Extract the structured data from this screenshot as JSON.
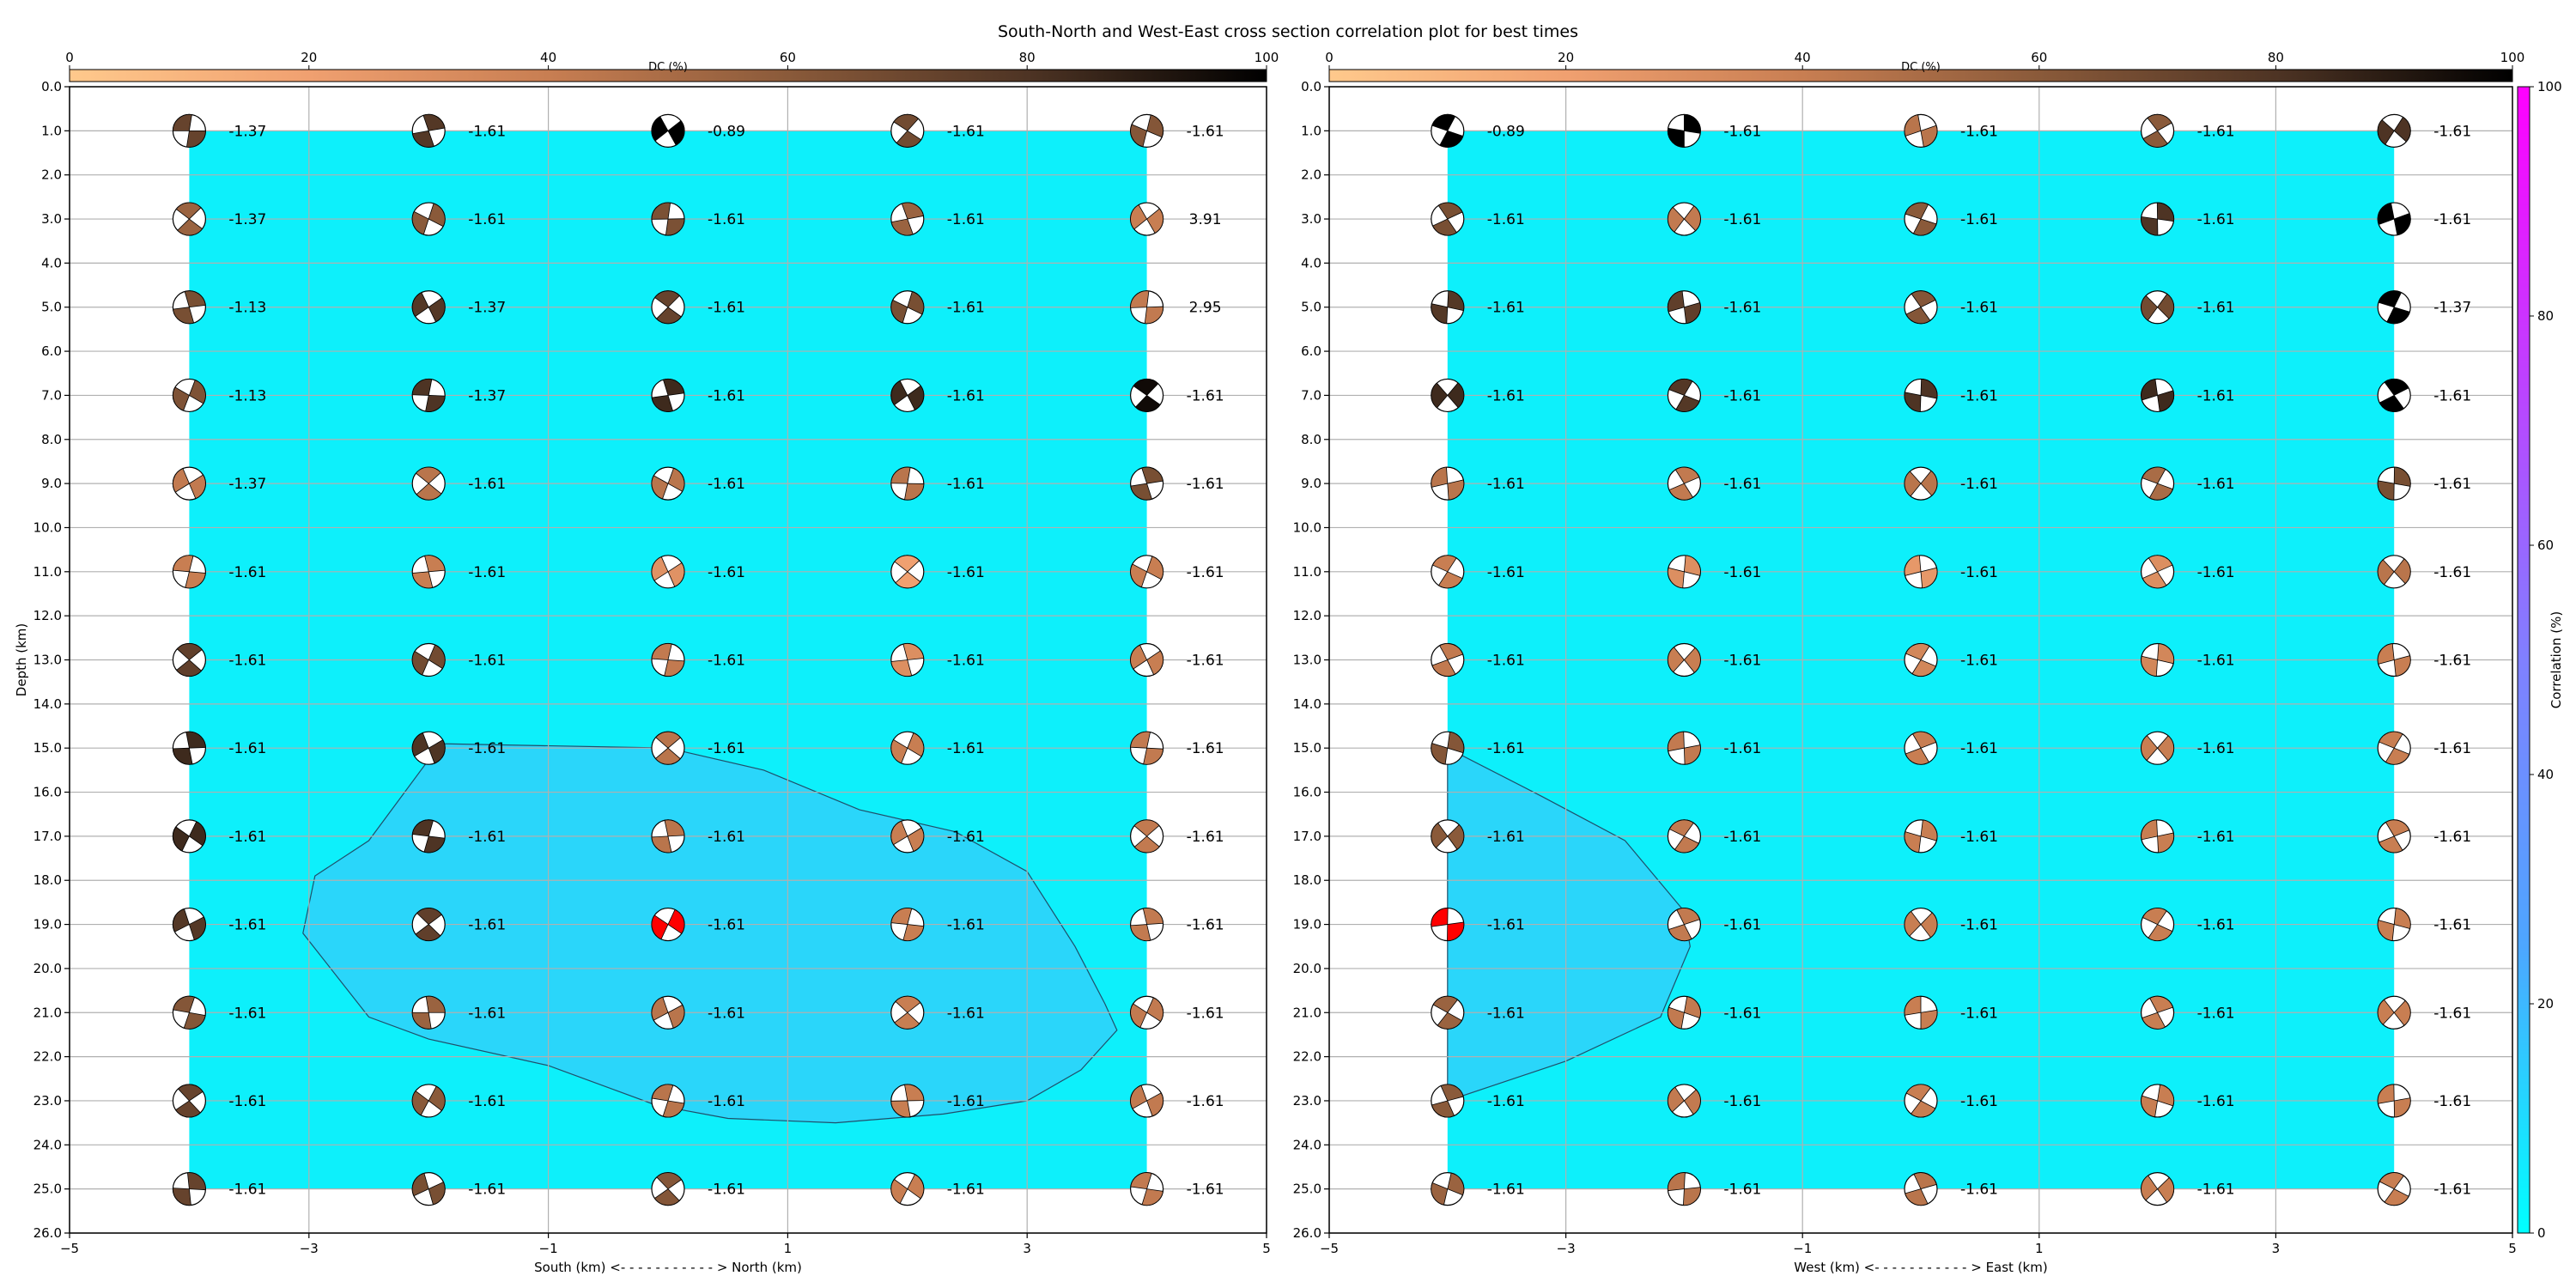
{
  "title": "South-North and West-East cross section correlation plot for best times",
  "colors": {
    "background_fill": "#0df0fb",
    "contour_fill": "#2ad6fa",
    "best_solution": "#ff0000",
    "dc_colormap": [
      "#ffc98c",
      "#f0a070",
      "#c87e52",
      "#8a5a3a",
      "#4e3424",
      "#000000"
    ],
    "correlation_colormap": [
      "#00ffff",
      "#4da6ff",
      "#8080ff",
      "#bf40ff",
      "#ff00ff"
    ]
  },
  "dc_colorbar": {
    "label": "DC (%)",
    "ticks": [
      0,
      20,
      40,
      60,
      80,
      100
    ]
  },
  "correlation_colorbar": {
    "label": "Correlation (%)",
    "ticks": [
      0,
      20,
      40,
      60,
      80,
      100
    ]
  },
  "chart_data": [
    {
      "type": "scatter",
      "panel": "south-north",
      "xlabel": "South (km) <- - - - - - - - - - - > North (km)",
      "ylabel": "Depth (km)",
      "xlim": [
        -5,
        5
      ],
      "ylim": [
        26,
        0
      ],
      "xticks": [
        -5,
        -3,
        -1,
        1,
        3,
        5
      ],
      "yticks": [
        0.0,
        1.0,
        2.0,
        3.0,
        4.0,
        5.0,
        6.0,
        7.0,
        8.0,
        9.0,
        10.0,
        11.0,
        12.0,
        13.0,
        14.0,
        15.0,
        16.0,
        17.0,
        18.0,
        19.0,
        20.0,
        21.0,
        22.0,
        23.0,
        24.0,
        25.0,
        26.0
      ],
      "grid": true,
      "x": [
        -4,
        -2,
        0,
        2,
        4
      ],
      "depths": [
        1,
        3,
        5,
        7,
        9,
        11,
        13,
        15,
        17,
        19,
        21,
        23,
        25
      ],
      "value_labels": [
        [
          "-1.37",
          "-1.61",
          "-0.89",
          "-1.61",
          "-1.61"
        ],
        [
          "-1.37",
          "-1.61",
          "-1.61",
          "-1.61",
          "3.91"
        ],
        [
          "-1.13",
          "-1.37",
          "-1.61",
          "-1.61",
          "2.95"
        ],
        [
          "-1.13",
          "-1.37",
          "-1.61",
          "-1.61",
          "-1.61"
        ],
        [
          "-1.37",
          "-1.61",
          "-1.61",
          "-1.61",
          "-1.61"
        ],
        [
          "-1.61",
          "-1.61",
          "-1.61",
          "-1.61",
          "-1.61"
        ],
        [
          "-1.61",
          "-1.61",
          "-1.61",
          "-1.61",
          "-1.61"
        ],
        [
          "-1.61",
          "-1.61",
          "-1.61",
          "-1.61",
          "-1.61"
        ],
        [
          "-1.61",
          "-1.61",
          "-1.61",
          "-1.61",
          "-1.61"
        ],
        [
          "-1.61",
          "-1.61",
          "-1.61",
          "-1.61",
          "-1.61"
        ],
        [
          "-1.61",
          "-1.61",
          "-1.61",
          "-1.61",
          "-1.61"
        ],
        [
          "-1.61",
          "-1.61",
          "-1.61",
          "-1.61",
          "-1.61"
        ],
        [
          "-1.61",
          "-1.61",
          "-1.61",
          "-1.61",
          "-1.61"
        ]
      ],
      "dc_percent": [
        [
          72,
          78,
          100,
          68,
          62
        ],
        [
          55,
          60,
          65,
          55,
          40
        ],
        [
          66,
          78,
          72,
          66,
          42
        ],
        [
          64,
          80,
          84,
          84,
          96
        ],
        [
          42,
          45,
          45,
          45,
          66
        ],
        [
          40,
          40,
          28,
          20,
          40
        ],
        [
          74,
          68,
          42,
          30,
          40
        ],
        [
          84,
          80,
          45,
          40,
          42
        ],
        [
          84,
          80,
          45,
          40,
          42
        ],
        [
          78,
          74,
          45,
          40,
          42
        ],
        [
          62,
          55,
          45,
          40,
          42
        ],
        [
          72,
          60,
          45,
          40,
          42
        ],
        [
          72,
          66,
          62,
          40,
          42
        ]
      ],
      "best_solution": {
        "x": 0,
        "depth": 19
      },
      "correlation_fill_region": {
        "xmin": -4,
        "xmax": 4,
        "depth_min": 1,
        "depth_max": 25
      },
      "contour": [
        [
          -1.9,
          14.9
        ],
        [
          0,
          15
        ],
        [
          0.8,
          15.5
        ],
        [
          1.6,
          16.4
        ],
        [
          2.4,
          16.9
        ],
        [
          3,
          17.8
        ],
        [
          3.4,
          19.5
        ],
        [
          3.65,
          20.8
        ],
        [
          3.75,
          21.4
        ],
        [
          3.45,
          22.3
        ],
        [
          3,
          23
        ],
        [
          2.3,
          23.3
        ],
        [
          1.4,
          23.5
        ],
        [
          0.5,
          23.4
        ],
        [
          -0.1,
          23.1
        ],
        [
          -1,
          22.2
        ],
        [
          -2,
          21.6
        ],
        [
          -2.5,
          21.1
        ],
        [
          -3.05,
          19.2
        ],
        [
          -2.95,
          17.9
        ],
        [
          -2.5,
          17.1
        ]
      ]
    },
    {
      "type": "scatter",
      "panel": "west-east",
      "xlabel": "West (km) <- - - - - - - - - - - > East (km)",
      "ylabel": "",
      "xlim": [
        -5,
        5
      ],
      "ylim": [
        26,
        0
      ],
      "xticks": [
        -5,
        -3,
        -1,
        1,
        3,
        5
      ],
      "yticks": [
        0.0,
        1.0,
        2.0,
        3.0,
        4.0,
        5.0,
        6.0,
        7.0,
        8.0,
        9.0,
        10.0,
        11.0,
        12.0,
        13.0,
        14.0,
        15.0,
        16.0,
        17.0,
        18.0,
        19.0,
        20.0,
        21.0,
        22.0,
        23.0,
        24.0,
        25.0,
        26.0
      ],
      "grid": true,
      "x": [
        -4,
        -2,
        0,
        2,
        4
      ],
      "depths": [
        1,
        3,
        5,
        7,
        9,
        11,
        13,
        15,
        17,
        19,
        21,
        23,
        25
      ],
      "value_labels": [
        [
          "-0.89",
          "-1.61",
          "-1.61",
          "-1.61",
          "-1.61"
        ],
        [
          "-1.61",
          "-1.61",
          "-1.61",
          "-1.61",
          "-1.61"
        ],
        [
          "-1.61",
          "-1.61",
          "-1.61",
          "-1.61",
          "-1.37"
        ],
        [
          "-1.61",
          "-1.61",
          "-1.61",
          "-1.61",
          "-1.61"
        ],
        [
          "-1.61",
          "-1.61",
          "-1.61",
          "-1.61",
          "-1.61"
        ],
        [
          "-1.61",
          "-1.61",
          "-1.61",
          "-1.61",
          "-1.61"
        ],
        [
          "-1.61",
          "-1.61",
          "-1.61",
          "-1.61",
          "-1.61"
        ],
        [
          "-1.61",
          "-1.61",
          "-1.61",
          "-1.61",
          "-1.61"
        ],
        [
          "-1.61",
          "-1.61",
          "-1.61",
          "-1.61",
          "-1.61"
        ],
        [
          "-1.61",
          "-1.61",
          "-1.61",
          "-1.61",
          "-1.61"
        ],
        [
          "-1.61",
          "-1.61",
          "-1.61",
          "-1.61",
          "-1.61"
        ],
        [
          "-1.61",
          "-1.61",
          "-1.61",
          "-1.61",
          "-1.61"
        ],
        [
          "-1.61",
          "-1.61",
          "-1.61",
          "-1.61",
          "-1.61"
        ]
      ],
      "dc_percent": [
        [
          100,
          100,
          45,
          60,
          80
        ],
        [
          66,
          42,
          60,
          80,
          100
        ],
        [
          78,
          74,
          62,
          68,
          100
        ],
        [
          84,
          78,
          80,
          84,
          100
        ],
        [
          45,
          42,
          45,
          50,
          66
        ],
        [
          40,
          30,
          25,
          30,
          45
        ],
        [
          42,
          40,
          35,
          35,
          40
        ],
        [
          62,
          42,
          40,
          40,
          40
        ],
        [
          60,
          42,
          40,
          40,
          40
        ],
        [
          100,
          42,
          40,
          40,
          40
        ],
        [
          55,
          42,
          40,
          40,
          40
        ],
        [
          60,
          42,
          40,
          40,
          40
        ],
        [
          55,
          45,
          45,
          40,
          40
        ]
      ],
      "best_solution": {
        "x": -4,
        "depth": 19
      },
      "correlation_fill_region": {
        "xmin": -4,
        "xmax": 4,
        "depth_min": 1,
        "depth_max": 25
      },
      "contour": [
        [
          -4,
          15
        ],
        [
          -3.2,
          16.1
        ],
        [
          -2.5,
          17.1
        ],
        [
          -2,
          18.7
        ],
        [
          -1.95,
          19.5
        ],
        [
          -2.2,
          21.1
        ],
        [
          -3,
          22.1
        ],
        [
          -4,
          23
        ]
      ]
    }
  ]
}
